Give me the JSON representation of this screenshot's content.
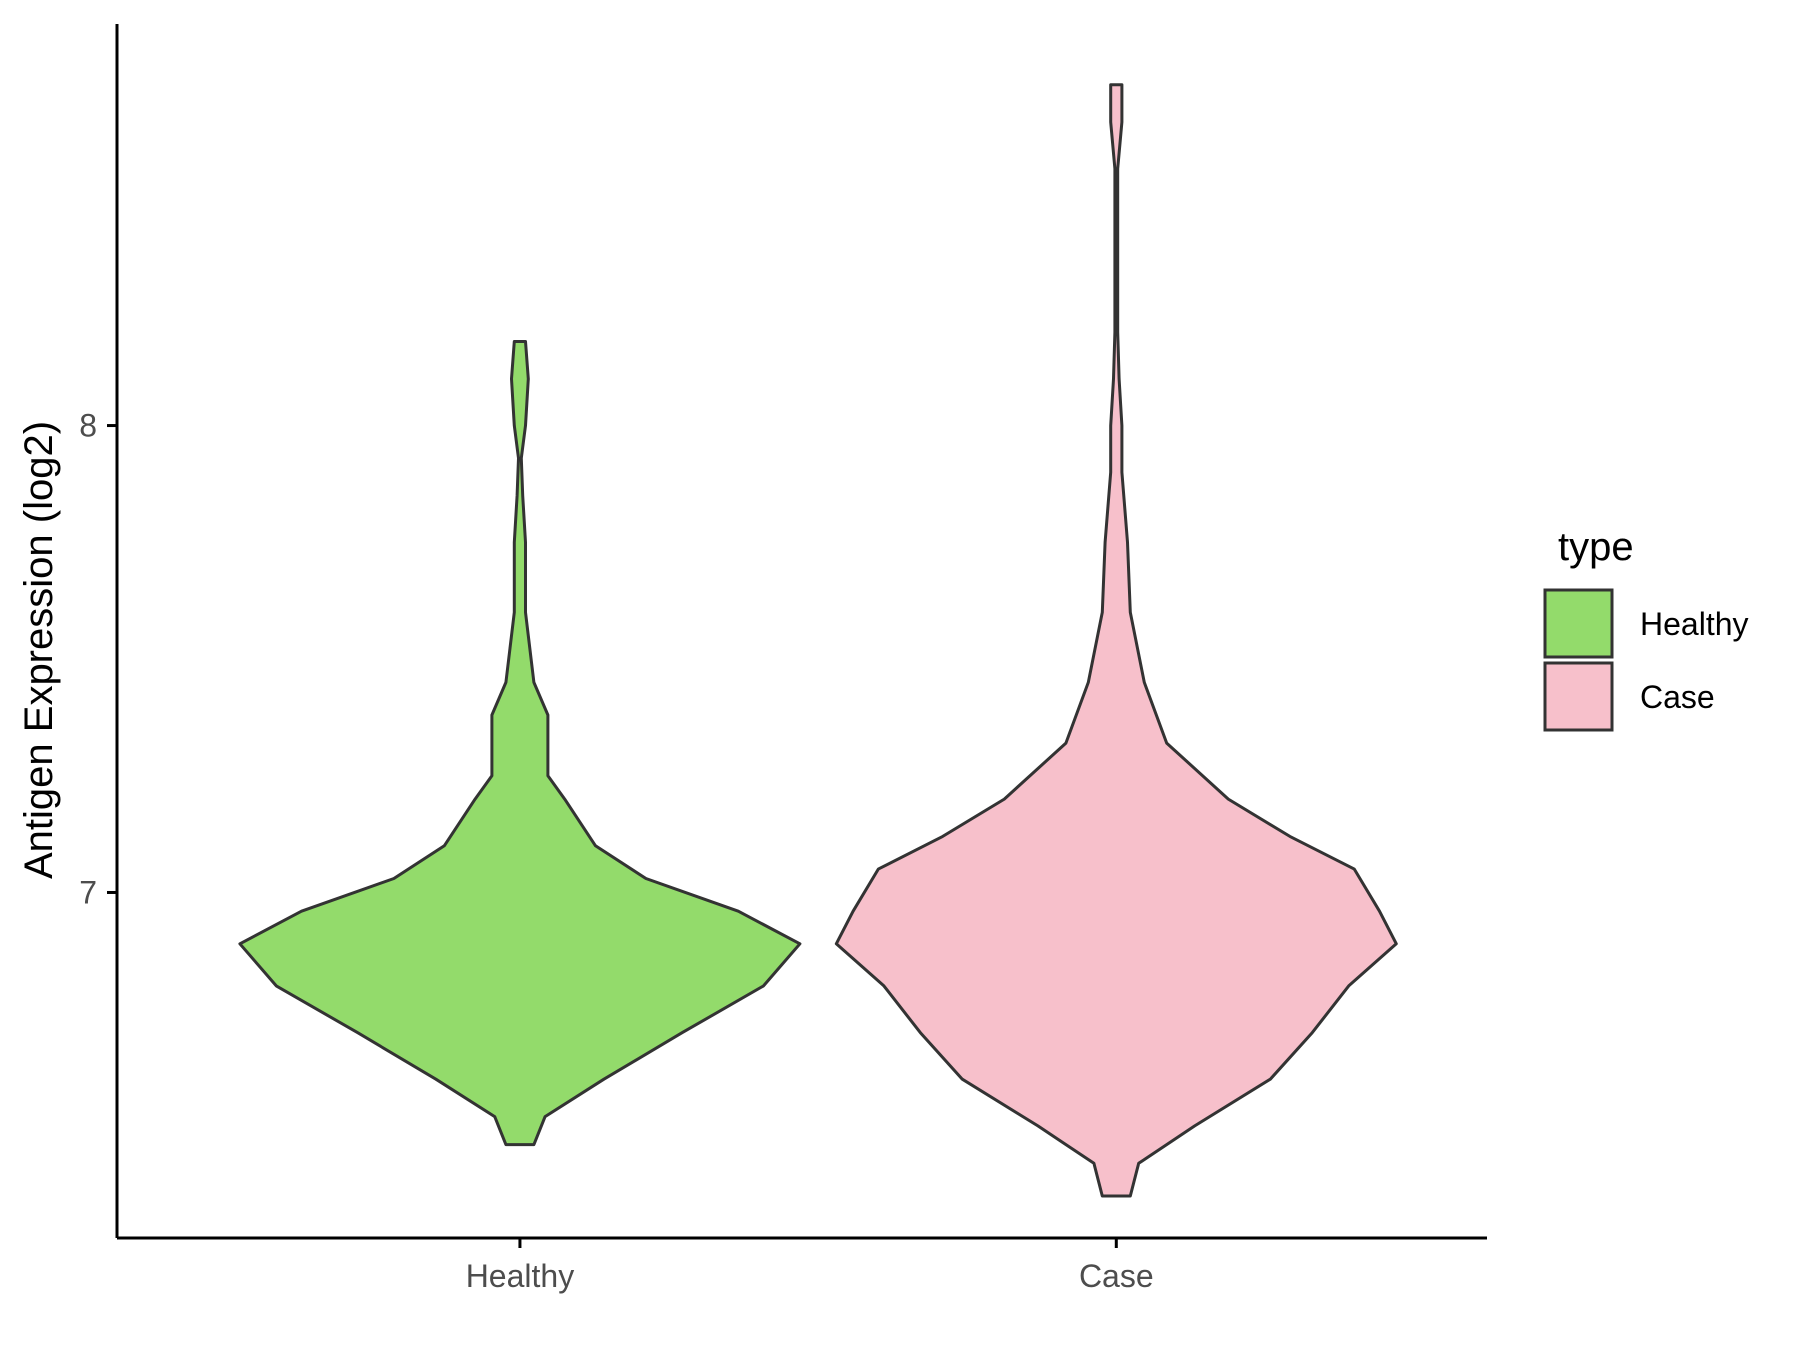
{
  "chart_data": {
    "type": "violin",
    "xlabel": "",
    "ylabel": "Antigen Expression (log2)",
    "categories": [
      "Healthy",
      "Case"
    ],
    "y_ticks": [
      7,
      8
    ],
    "ylim": [
      6.26,
      8.86
    ],
    "grid": false,
    "legend": {
      "title": "type",
      "position": "right",
      "entries": [
        {
          "label": "Healthy",
          "color": "#93DB6B"
        },
        {
          "label": "Case",
          "color": "#F7C0CB"
        }
      ]
    },
    "series": [
      {
        "category": "Healthy",
        "color": "#93DB6B",
        "y_min": 6.46,
        "y_max": 8.18,
        "profile": [
          [
            6.46,
            0.05
          ],
          [
            6.52,
            0.09
          ],
          [
            6.6,
            0.3
          ],
          [
            6.7,
            0.58
          ],
          [
            6.8,
            0.87
          ],
          [
            6.89,
            1.0
          ],
          [
            6.96,
            0.78
          ],
          [
            7.03,
            0.45
          ],
          [
            7.1,
            0.27
          ],
          [
            7.2,
            0.16
          ],
          [
            7.25,
            0.1
          ],
          [
            7.32,
            0.1
          ],
          [
            7.38,
            0.1
          ],
          [
            7.45,
            0.05
          ],
          [
            7.55,
            0.03
          ],
          [
            7.6,
            0.02
          ],
          [
            7.65,
            0.02
          ],
          [
            7.7,
            0.02
          ],
          [
            7.75,
            0.02
          ],
          [
            7.85,
            0.01
          ],
          [
            7.93,
            0.005
          ],
          [
            8.0,
            0.02
          ],
          [
            8.1,
            0.03
          ],
          [
            8.18,
            0.02
          ]
        ]
      },
      {
        "category": "Case",
        "color": "#F7C0CB",
        "y_min": 6.35,
        "y_max": 8.73,
        "profile": [
          [
            6.35,
            0.05
          ],
          [
            6.42,
            0.08
          ],
          [
            6.5,
            0.28
          ],
          [
            6.6,
            0.55
          ],
          [
            6.7,
            0.7
          ],
          [
            6.8,
            0.83
          ],
          [
            6.89,
            1.0
          ],
          [
            6.96,
            0.94
          ],
          [
            7.05,
            0.85
          ],
          [
            7.12,
            0.62
          ],
          [
            7.2,
            0.4
          ],
          [
            7.32,
            0.18
          ],
          [
            7.45,
            0.1
          ],
          [
            7.6,
            0.05
          ],
          [
            7.75,
            0.04
          ],
          [
            7.9,
            0.02
          ],
          [
            8.0,
            0.02
          ],
          [
            8.1,
            0.01
          ],
          [
            8.2,
            0.005
          ],
          [
            8.4,
            0.005
          ],
          [
            8.55,
            0.005
          ],
          [
            8.65,
            0.02
          ],
          [
            8.73,
            0.02
          ]
        ]
      }
    ]
  }
}
